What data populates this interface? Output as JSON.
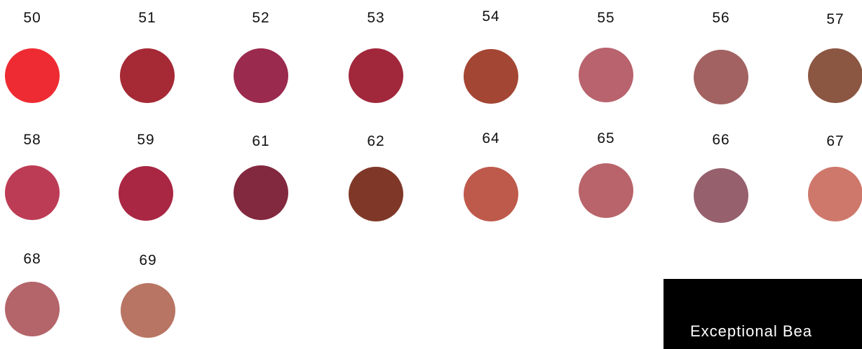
{
  "swatches": [
    {
      "label": "50",
      "color": "#EE2B32"
    },
    {
      "label": "51",
      "color": "#A52A36"
    },
    {
      "label": "52",
      "color": "#9B2A4F"
    },
    {
      "label": "53",
      "color": "#A1273B"
    },
    {
      "label": "54",
      "color": "#A44634"
    },
    {
      "label": "55",
      "color": "#B8636D"
    },
    {
      "label": "56",
      "color": "#A26261"
    },
    {
      "label": "57",
      "color": "#8B5642"
    },
    {
      "label": "58",
      "color": "#BD3C55"
    },
    {
      "label": "59",
      "color": "#A92743"
    },
    {
      "label": "61",
      "color": "#82283F"
    },
    {
      "label": "62",
      "color": "#7F3828"
    },
    {
      "label": "64",
      "color": "#BE5A4B"
    },
    {
      "label": "65",
      "color": "#B8646A"
    },
    {
      "label": "66",
      "color": "#96606D"
    },
    {
      "label": "67",
      "color": "#CE786B"
    },
    {
      "label": "68",
      "color": "#B4656A"
    },
    {
      "label": "69",
      "color": "#B87563"
    }
  ],
  "badge": {
    "text": "Exceptional Bea"
  }
}
